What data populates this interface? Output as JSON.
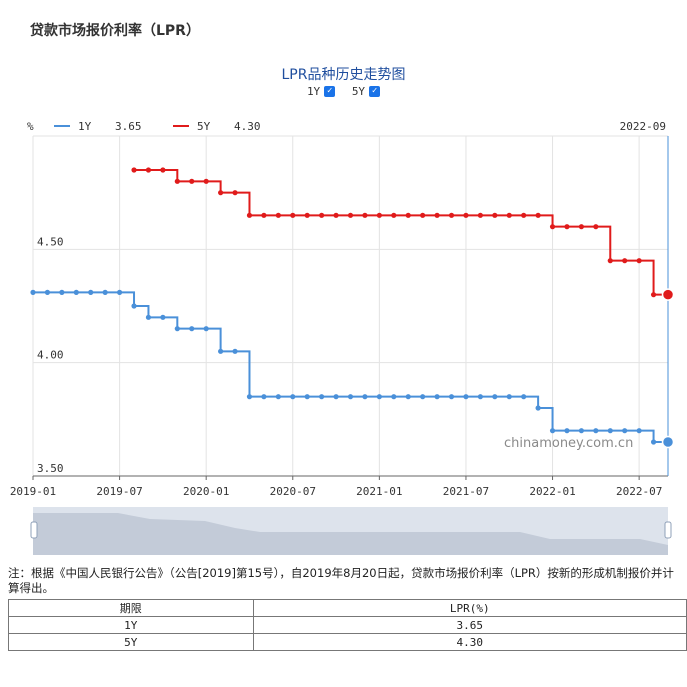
{
  "page_title": "贷款市场报价利率（LPR）",
  "chart_title": "LPR品种历史走势图",
  "toggles": [
    {
      "label": "1Y",
      "checked": true
    },
    {
      "label": "5Y",
      "checked": true
    }
  ],
  "legend": [
    {
      "name": "1Y",
      "value": "3.65",
      "color": "#4a90d9"
    },
    {
      "name": "5Y",
      "value": "4.30",
      "color": "#e01b1b"
    }
  ],
  "unit_label": "%",
  "current_period": "2022-09",
  "watermark": "chinamoney.com.cn",
  "note": "注：根据《中国人民银行公告》（公告[2019]第15号），自2019年8月20日起，贷款市场报价利率（LPR）按新的形成机制报价并计算得出。",
  "table": {
    "headers": [
      "期限",
      "LPR(%)"
    ],
    "rows": [
      [
        "1Y",
        "3.65"
      ],
      [
        "5Y",
        "4.30"
      ]
    ]
  },
  "chart_data": {
    "type": "line",
    "title": "LPR品种历史走势图",
    "xlabel": "",
    "ylabel": "%",
    "x_tick_labels": [
      "2019-01",
      "2019-07",
      "2020-01",
      "2020-07",
      "2021-01",
      "2021-07",
      "2022-01",
      "2022-07"
    ],
    "y_tick_labels": [
      "3.50",
      "4.00",
      "4.50"
    ],
    "ylim": [
      3.5,
      5.0
    ],
    "grid": true,
    "legend_position": "top-left",
    "series": [
      {
        "name": "1Y",
        "color": "#4a90d9",
        "points": [
          [
            "2019-01",
            4.31
          ],
          [
            "2019-02",
            4.31
          ],
          [
            "2019-03",
            4.31
          ],
          [
            "2019-04",
            4.31
          ],
          [
            "2019-05",
            4.31
          ],
          [
            "2019-06",
            4.31
          ],
          [
            "2019-07",
            4.31
          ],
          [
            "2019-08",
            4.25
          ],
          [
            "2019-09",
            4.2
          ],
          [
            "2019-10",
            4.2
          ],
          [
            "2019-11",
            4.15
          ],
          [
            "2019-12",
            4.15
          ],
          [
            "2020-01",
            4.15
          ],
          [
            "2020-02",
            4.05
          ],
          [
            "2020-03",
            4.05
          ],
          [
            "2020-04",
            3.85
          ],
          [
            "2020-05",
            3.85
          ],
          [
            "2020-06",
            3.85
          ],
          [
            "2020-07",
            3.85
          ],
          [
            "2020-08",
            3.85
          ],
          [
            "2020-09",
            3.85
          ],
          [
            "2020-10",
            3.85
          ],
          [
            "2020-11",
            3.85
          ],
          [
            "2020-12",
            3.85
          ],
          [
            "2021-01",
            3.85
          ],
          [
            "2021-02",
            3.85
          ],
          [
            "2021-03",
            3.85
          ],
          [
            "2021-04",
            3.85
          ],
          [
            "2021-05",
            3.85
          ],
          [
            "2021-06",
            3.85
          ],
          [
            "2021-07",
            3.85
          ],
          [
            "2021-08",
            3.85
          ],
          [
            "2021-09",
            3.85
          ],
          [
            "2021-10",
            3.85
          ],
          [
            "2021-11",
            3.85
          ],
          [
            "2021-12",
            3.8
          ],
          [
            "2022-01",
            3.7
          ],
          [
            "2022-02",
            3.7
          ],
          [
            "2022-03",
            3.7
          ],
          [
            "2022-04",
            3.7
          ],
          [
            "2022-05",
            3.7
          ],
          [
            "2022-06",
            3.7
          ],
          [
            "2022-07",
            3.7
          ],
          [
            "2022-08",
            3.65
          ],
          [
            "2022-09",
            3.65
          ]
        ]
      },
      {
        "name": "5Y",
        "color": "#e01b1b",
        "points": [
          [
            "2019-08",
            4.85
          ],
          [
            "2019-09",
            4.85
          ],
          [
            "2019-10",
            4.85
          ],
          [
            "2019-11",
            4.8
          ],
          [
            "2019-12",
            4.8
          ],
          [
            "2020-01",
            4.8
          ],
          [
            "2020-02",
            4.75
          ],
          [
            "2020-03",
            4.75
          ],
          [
            "2020-04",
            4.65
          ],
          [
            "2020-05",
            4.65
          ],
          [
            "2020-06",
            4.65
          ],
          [
            "2020-07",
            4.65
          ],
          [
            "2020-08",
            4.65
          ],
          [
            "2020-09",
            4.65
          ],
          [
            "2020-10",
            4.65
          ],
          [
            "2020-11",
            4.65
          ],
          [
            "2020-12",
            4.65
          ],
          [
            "2021-01",
            4.65
          ],
          [
            "2021-02",
            4.65
          ],
          [
            "2021-03",
            4.65
          ],
          [
            "2021-04",
            4.65
          ],
          [
            "2021-05",
            4.65
          ],
          [
            "2021-06",
            4.65
          ],
          [
            "2021-07",
            4.65
          ],
          [
            "2021-08",
            4.65
          ],
          [
            "2021-09",
            4.65
          ],
          [
            "2021-10",
            4.65
          ],
          [
            "2021-11",
            4.65
          ],
          [
            "2021-12",
            4.65
          ],
          [
            "2022-01",
            4.6
          ],
          [
            "2022-02",
            4.6
          ],
          [
            "2022-03",
            4.6
          ],
          [
            "2022-04",
            4.6
          ],
          [
            "2022-05",
            4.45
          ],
          [
            "2022-06",
            4.45
          ],
          [
            "2022-07",
            4.45
          ],
          [
            "2022-08",
            4.3
          ],
          [
            "2022-09",
            4.3
          ]
        ]
      }
    ]
  }
}
